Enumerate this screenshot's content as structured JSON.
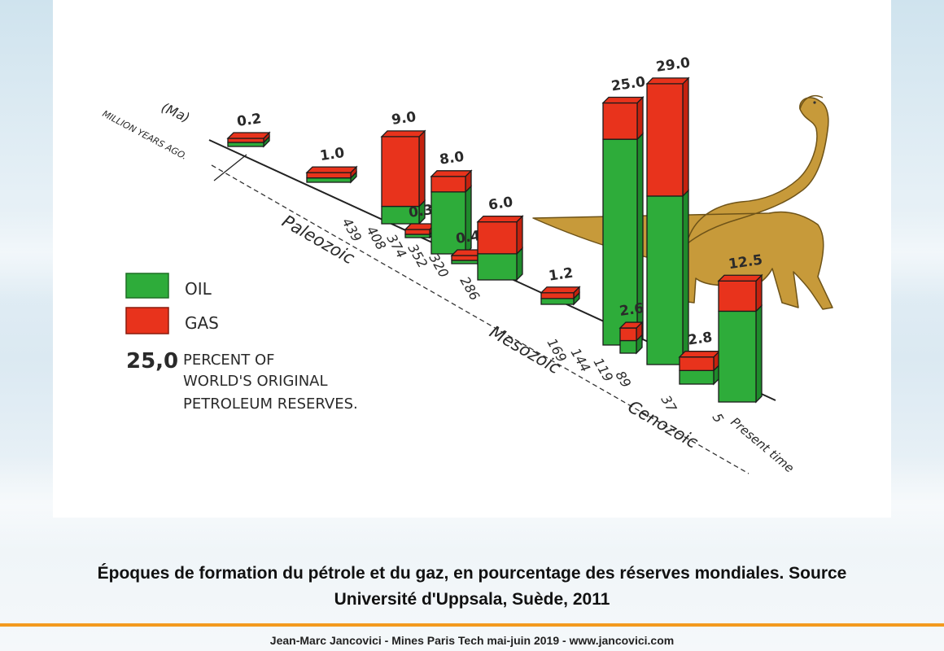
{
  "caption": {
    "line1": "Époques de formation du pétrole et du gaz, en pourcentage des réserves mondiales. Source",
    "line2": "Université d'Uppsala, Suède, 2011"
  },
  "footer": "Jean-Marc Jancovici - Mines Paris Tech mai-juin 2019 - www.jancovici.com",
  "figure": {
    "axis_unit": "(Ma)",
    "axis_label": "MILLION YEARS AGO.",
    "present_label": "Present time",
    "eras": [
      "Paleozoic",
      "Mesozoic",
      "Cenozoic"
    ],
    "legend": {
      "oil": "OIL",
      "gas": "GAS",
      "value_sample": "25,0",
      "value_desc_line1": "PERCENT OF",
      "value_desc_line2": "WORLD'S ORIGINAL",
      "value_desc_line3": "PETROLEUM RESERVES."
    }
  },
  "colors": {
    "oil": "#2eac3a",
    "oil_dark": "#1f8a2b",
    "gas": "#e8331c",
    "gas_dark": "#c4220f",
    "accent_rule": "#f39a1e"
  },
  "chart_data": {
    "type": "bar",
    "stacked": true,
    "ticks": [
      "439",
      "408",
      "374",
      "352",
      "320",
      "286",
      "169",
      "144",
      "119",
      "89",
      "37",
      "5"
    ],
    "series": [
      {
        "name": "OIL",
        "color": "#2eac3a"
      },
      {
        "name": "GAS",
        "color": "#e8331c"
      }
    ],
    "bars": [
      {
        "label": "0.2",
        "value": 0.2,
        "oil_share": 0.5
      },
      {
        "label": "1.0",
        "value": 1.0,
        "oil_share": 0.45
      },
      {
        "label": "9.0",
        "value": 9.0,
        "oil_share": 0.2
      },
      {
        "label": "0.3",
        "value": 0.3,
        "oil_share": 0.4
      },
      {
        "label": "8.0",
        "value": 8.0,
        "oil_share": 0.8
      },
      {
        "label": "0.4",
        "value": 0.4,
        "oil_share": 0.4
      },
      {
        "label": "6.0",
        "value": 6.0,
        "oil_share": 0.45
      },
      {
        "label": "1.2",
        "value": 1.2,
        "oil_share": 0.5
      },
      {
        "label": "25.0",
        "value": 25.0,
        "oil_share": 0.85
      },
      {
        "label": "2.6",
        "value": 2.6,
        "oil_share": 0.5
      },
      {
        "label": "29.0",
        "value": 29.0,
        "oil_share": 0.6
      },
      {
        "label": "2.8",
        "value": 2.8,
        "oil_share": 0.5
      },
      {
        "label": "12.5",
        "value": 12.5,
        "oil_share": 0.75
      }
    ]
  }
}
